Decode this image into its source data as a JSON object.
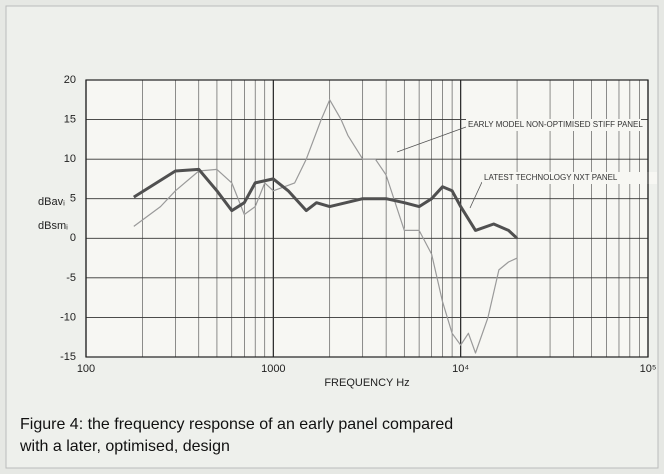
{
  "chart_data": {
    "type": "line",
    "x_label": "FREQUENCY  Hz",
    "y_labels": [
      "dBavᵢ",
      "dBsmᵢ"
    ],
    "caption": [
      "Figure 4: the frequency response of an early panel compared",
      "with a later, optimised, design"
    ],
    "xlim": [
      100,
      100000
    ],
    "xlog": true,
    "xticks": [
      100,
      1000,
      {
        "value": 10000,
        "label": "10⁴"
      },
      {
        "value": 100000,
        "label": "10⁵"
      }
    ],
    "ylim": [
      -15,
      20
    ],
    "yticks": [
      20,
      15,
      10,
      5,
      0,
      -5,
      -10,
      -15
    ],
    "grid": true,
    "series": [
      {
        "name": "EARLY MODEL NON-OPTIMISED STIFF PANEL",
        "color": "#9a9a9a",
        "width": 1.2,
        "x": [
          180,
          250,
          300,
          400,
          500,
          600,
          700,
          800,
          900,
          1000,
          1300,
          1500,
          1800,
          2000,
          2300,
          2500,
          3000,
          3500,
          4000,
          5000,
          6000,
          7000,
          8000,
          9000,
          10000,
          11000,
          12000,
          14000,
          16000,
          18000,
          20000
        ],
        "values": [
          1.5,
          4,
          6,
          8.5,
          8.7,
          7,
          3,
          4,
          7,
          6,
          7,
          10,
          15,
          17.5,
          15,
          13,
          10,
          10,
          8,
          1,
          1,
          -2,
          -8,
          -12,
          -13.5,
          -12,
          -14.5,
          -10,
          -4,
          -3,
          -2.5
        ]
      },
      {
        "name": "LATEST TECHNOLOGY NXT PANEL",
        "color": "#505050",
        "width": 3,
        "x": [
          180,
          300,
          400,
          500,
          600,
          700,
          800,
          1000,
          1200,
          1500,
          1700,
          2000,
          3000,
          4000,
          5000,
          6000,
          7000,
          8000,
          9000,
          10000,
          12000,
          15000,
          18000,
          20000
        ],
        "values": [
          5.2,
          8.5,
          8.7,
          6,
          3.5,
          4.5,
          7,
          7.5,
          6,
          3.5,
          4.5,
          4,
          5,
          5,
          4.5,
          4,
          5,
          6.5,
          6,
          4,
          1,
          1.8,
          1,
          0
        ]
      }
    ]
  }
}
